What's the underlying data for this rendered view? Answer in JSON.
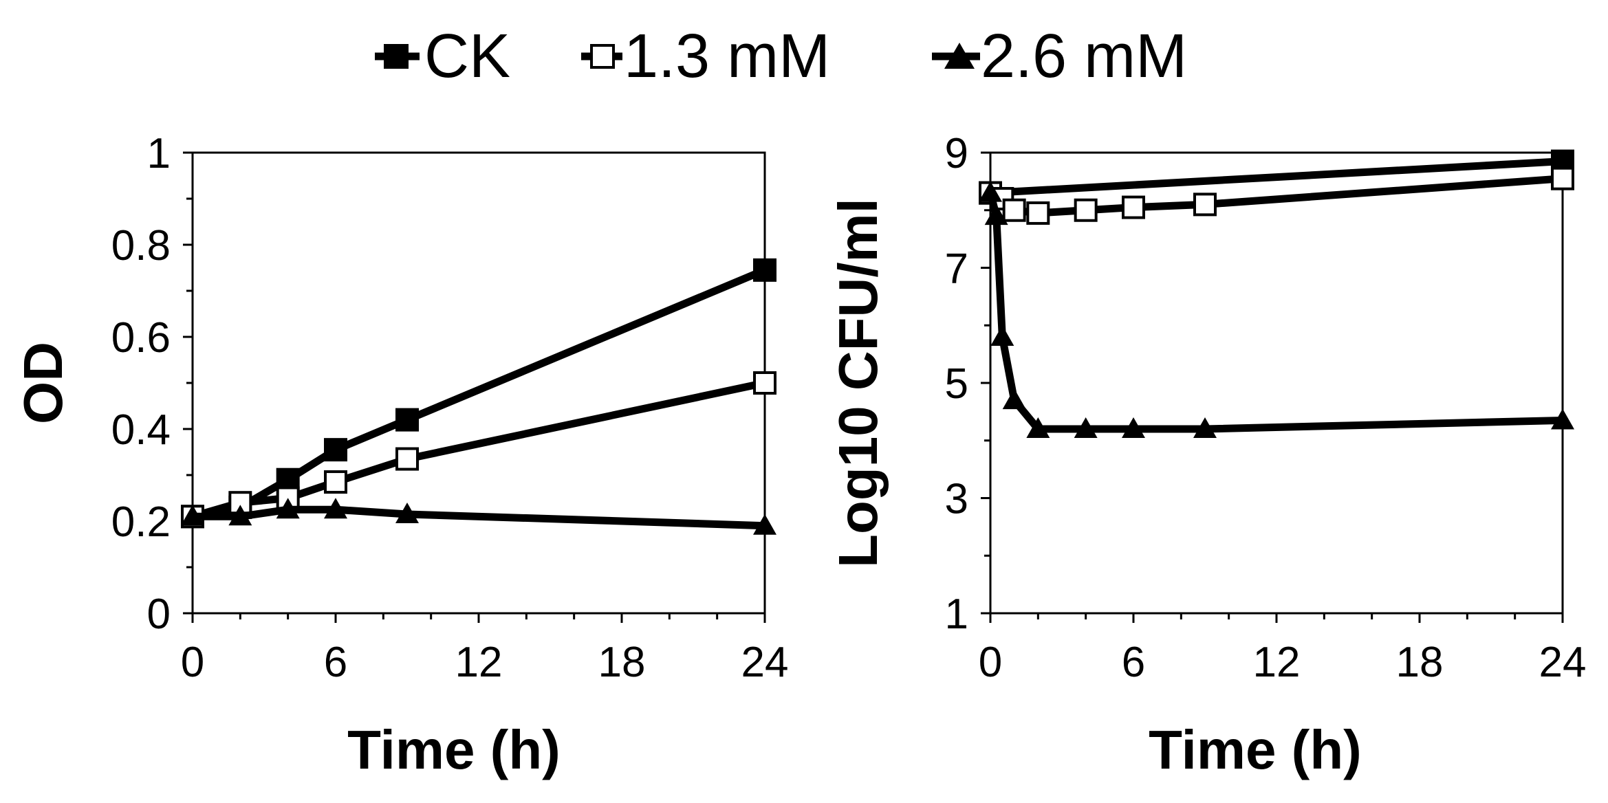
{
  "chart_data": {
    "legend": [
      {
        "name": "CK",
        "marker": "square-filled"
      },
      {
        "name": "1.3 mM",
        "marker": "square-open"
      },
      {
        "name": "2.6 mM",
        "marker": "triangle-filled"
      }
    ],
    "panels": [
      {
        "type": "line",
        "xlabel": "Time (h)",
        "ylabel": "OD",
        "xlim": [
          0,
          24
        ],
        "ylim": [
          0,
          1
        ],
        "xticks": [
          0,
          6,
          12,
          18,
          24
        ],
        "xtick_labels": [
          "0",
          "6",
          "12",
          "18",
          "24"
        ],
        "yticks": [
          0,
          0.2,
          0.4,
          0.6,
          0.8,
          1
        ],
        "ytick_labels": [
          "0",
          "0.2",
          "0.4",
          "0.6",
          "0.8",
          "1"
        ],
        "series": [
          {
            "name": "CK",
            "x": [
              0,
              2,
              4,
              6,
              9,
              24
            ],
            "y": [
              0.21,
              0.23,
              0.29,
              0.355,
              0.42,
              0.745
            ]
          },
          {
            "name": "1.3 mM",
            "x": [
              0,
              2,
              4,
              6,
              9,
              24
            ],
            "y": [
              0.21,
              0.24,
              0.25,
              0.285,
              0.335,
              0.5
            ]
          },
          {
            "name": "2.6 mM",
            "x": [
              0,
              2,
              4,
              6,
              9,
              24
            ],
            "y": [
              0.21,
              0.21,
              0.225,
              0.225,
              0.215,
              0.19
            ]
          }
        ]
      },
      {
        "type": "line",
        "xlabel": "Time (h)",
        "ylabel": "Log10 CFU/ml",
        "xlim": [
          0,
          24
        ],
        "ylim": [
          1,
          9
        ],
        "xticks": [
          0,
          6,
          12,
          18,
          24
        ],
        "xtick_labels": [
          "0",
          "6",
          "12",
          "18",
          "24"
        ],
        "yticks": [
          1,
          3,
          5,
          7,
          9
        ],
        "ytick_labels": [
          "1",
          "3",
          "5",
          "7",
          "9"
        ],
        "series": [
          {
            "name": "CK",
            "x": [
              0,
              24
            ],
            "y": [
              8.3,
              8.85
            ]
          },
          {
            "name": "1.3 mM",
            "x": [
              0,
              0.5,
              1,
              2,
              4,
              6,
              9,
              24
            ],
            "y": [
              8.3,
              8.2,
              8.0,
              7.95,
              8.0,
              8.05,
              8.1,
              8.55
            ]
          },
          {
            "name": "2.6 mM",
            "x": [
              0,
              0.25,
              0.5,
              1,
              2,
              4,
              6,
              9,
              24
            ],
            "y": [
              8.3,
              7.9,
              5.8,
              4.7,
              4.2,
              4.2,
              4.2,
              4.2,
              4.35
            ]
          }
        ]
      }
    ]
  }
}
